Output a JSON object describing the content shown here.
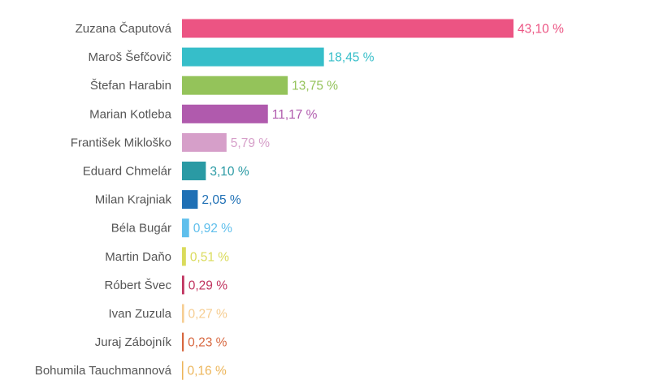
{
  "chart_data": {
    "type": "bar",
    "orientation": "horizontal",
    "categories": [
      "Zuzana Čaputová",
      "Maroš Šefčovič",
      "Štefan Harabin",
      "Marian Kotleba",
      "František Mikloško",
      "Eduard Chmelár",
      "Milan Krajniak",
      "Béla Bugár",
      "Martin Daňo",
      "Róbert Švec",
      "Ivan Zuzula",
      "Juraj Zábojník",
      "Bohumila Tauchmannová"
    ],
    "values": [
      43.1,
      18.45,
      13.75,
      11.17,
      5.79,
      3.1,
      2.05,
      0.92,
      0.51,
      0.29,
      0.27,
      0.23,
      0.16
    ],
    "value_labels": [
      "43,10 %",
      "18,45 %",
      "13,75 %",
      "11,17 %",
      "5,79 %",
      "3,10 %",
      "2,05 %",
      "0,92 %",
      "0,51 %",
      "0,29 %",
      "0,27 %",
      "0,23 %",
      "0,16 %"
    ],
    "colors": [
      "#ec5483",
      "#36bec9",
      "#94c35a",
      "#b05aad",
      "#d69fc9",
      "#2a9aa4",
      "#1f70b5",
      "#5fbfec",
      "#dadb5b",
      "#c0335f",
      "#f6cd91",
      "#d7673f",
      "#ecb559"
    ],
    "xlim": [
      0,
      43.1
    ],
    "grid": false,
    "legend": "none"
  }
}
